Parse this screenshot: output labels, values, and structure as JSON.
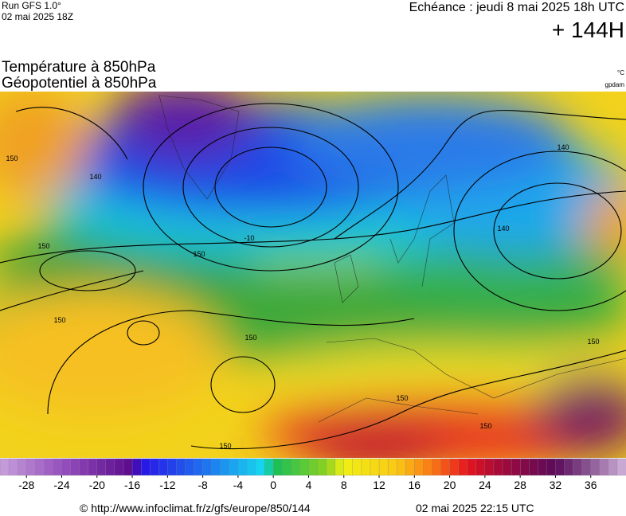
{
  "header": {
    "run": "Run GFS 1.0°",
    "run_date": "02 mai 2025 18Z",
    "valid": "Echéance : jeudi 8 mai 2025 18h UTC",
    "lead": "+ 144H"
  },
  "titles": [
    "Température à 850hPa",
    "Géopotentiel à 850hPa"
  ],
  "units": [
    "°C",
    "gpdam"
  ],
  "map": {
    "contour_labels": [
      "150",
      "140",
      "150",
      "150",
      "150",
      "150",
      "150",
      "150",
      "140",
      "140",
      "-10",
      "150",
      "150"
    ]
  },
  "colorbar": {
    "lim": [
      -31,
      40
    ],
    "ticks": [
      -28,
      -24,
      -20,
      -16,
      -12,
      -8,
      -4,
      0,
      4,
      8,
      12,
      16,
      20,
      24,
      28,
      32,
      36
    ]
  },
  "footer": {
    "source": "© http://www.infoclimat.fr/z/gfs/europe/850/144",
    "generated": "02 mai 2025 22:15 UTC"
  }
}
